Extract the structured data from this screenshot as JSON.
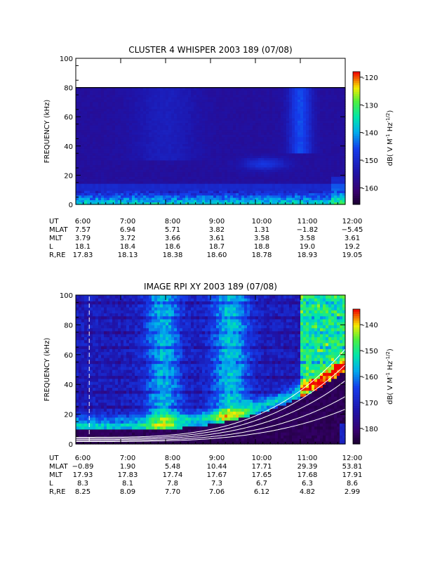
{
  "chart_data": [
    {
      "type": "heatmap",
      "title": "CLUSTER 4 WHISPER 2003 189 (07/08)",
      "ylabel": "FREQUENCY (kHz)",
      "ylim": [
        0,
        100
      ],
      "yticks": [
        "0",
        "20",
        "40",
        "60",
        "80",
        "100"
      ],
      "xticks": [
        "6:00",
        "7:00",
        "8:00",
        "9:00",
        "10:00",
        "11:00",
        "12:00"
      ],
      "xlim_hours": [
        6,
        12
      ],
      "data_top_khz": 80,
      "colorbar": {
        "label": "dB( V M",
        "label_sup1": "-1",
        "label_mid": " Hz",
        "label_sup2": "-1/2",
        "label_end": ")",
        "range": [
          -166,
          -118
        ],
        "ticks": [
          "-160",
          "-150",
          "-140",
          "-130",
          "-120"
        ],
        "tick_values": [
          -160,
          -150,
          -140,
          -130,
          -120
        ]
      },
      "features": "broadband emission below ~12 kHz throughout; faint enhancement near 27-30 kHz around 10:00-10:30; brighter diffuse band 40-80 kHz near 10:45-11:15",
      "ephemeris": {
        "labels": [
          "UT",
          "MLAT",
          "MLT",
          "L",
          "R,RE"
        ],
        "rows": [
          [
            "6:00",
            "7:00",
            "8:00",
            "9:00",
            "10:00",
            "11:00",
            "12:00"
          ],
          [
            "7.57",
            "6.94",
            "5.71",
            "3.82",
            "1.31",
            "−1.82",
            "−5.45"
          ],
          [
            "3.79",
            "3.72",
            "3.66",
            "3.61",
            "3.58",
            "3.58",
            "3.61"
          ],
          [
            "18.1",
            "18.4",
            "18.6",
            "18.7",
            "18.8",
            "19.0",
            "19.2"
          ],
          [
            "17.83",
            "18.13",
            "18.38",
            "18.60",
            "18.78",
            "18.93",
            "19.05"
          ]
        ]
      }
    },
    {
      "type": "heatmap",
      "title": "IMAGE RPI XY 2003 189 (07/08)",
      "ylabel": "FREQUENCY (kHz)",
      "ylim": [
        0,
        100
      ],
      "yticks": [
        "0",
        "20",
        "40",
        "60",
        "80",
        "100"
      ],
      "xticks": [
        "6:00",
        "7:00",
        "8:00",
        "9:00",
        "10:00",
        "11:00",
        "12:00"
      ],
      "xlim_hours": [
        6,
        12
      ],
      "colorbar": {
        "label": "dB( V M",
        "label_sup1": "-1",
        "label_mid": " Hz",
        "label_sup2": "-1/2",
        "label_end": ")",
        "range": [
          -186,
          -134
        ],
        "ticks": [
          "-180",
          "-170",
          "-160",
          "-150",
          "-140"
        ],
        "tick_values": [
          -180,
          -170,
          -160,
          -150,
          -140
        ]
      },
      "dashed_line_ut": 6.3,
      "features": "plasma-frequency cutoff rising from ~10 kHz at 6:00 to ~45 kHz at 11:45; broadband bursts near 8:00, 9:30 and after 11:00",
      "ephemeris": {
        "labels": [
          "UT",
          "MLAT",
          "MLT",
          "L",
          "R,RE"
        ],
        "rows": [
          [
            "6:00",
            "7:00",
            "8:00",
            "9:00",
            "10:00",
            "11:00",
            "12:00"
          ],
          [
            "−0.89",
            "1.90",
            "5.48",
            "10.44",
            "17.71",
            "29.39",
            "53.81"
          ],
          [
            "17.93",
            "17.83",
            "17.74",
            "17.67",
            "17.65",
            "17.68",
            "17.91"
          ],
          [
            "8.3",
            "8.1",
            "7.8",
            "7.3",
            "6.7",
            "6.3",
            "8.6"
          ],
          [
            "8.25",
            "8.09",
            "7.70",
            "7.06",
            "6.12",
            "4.82",
            "2.99"
          ]
        ]
      }
    }
  ]
}
